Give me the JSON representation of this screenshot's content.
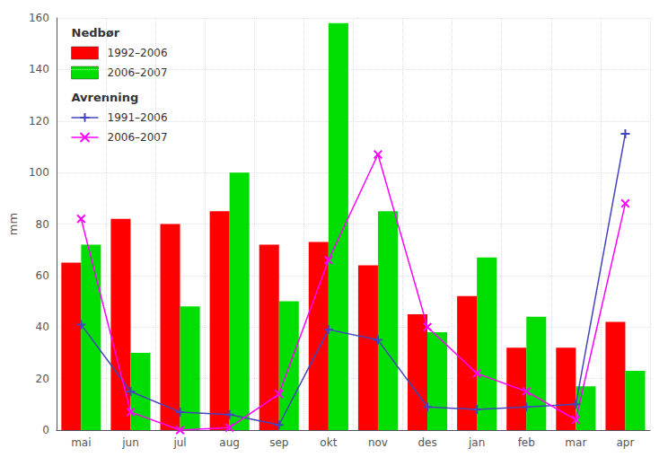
{
  "chart_data": {
    "type": "bar",
    "categories": [
      "mai",
      "jun",
      "jul",
      "aug",
      "sep",
      "okt",
      "nov",
      "des",
      "jan",
      "feb",
      "mar",
      "apr"
    ],
    "series": [
      {
        "name": "1992–2006",
        "legend_group": "Nedbør",
        "type": "bar",
        "color": "#ff0000",
        "values": [
          65,
          82,
          80,
          85,
          72,
          73,
          64,
          45,
          52,
          32,
          32,
          42
        ]
      },
      {
        "name": "2006–2007",
        "legend_group": "Nedbør",
        "type": "bar",
        "color": "#00dd00",
        "values": [
          72,
          30,
          48,
          100,
          50,
          158,
          85,
          38,
          67,
          44,
          17,
          23
        ]
      },
      {
        "name": "1991–2006",
        "legend_group": "Avrenning",
        "type": "line",
        "color": "#4444bb",
        "marker": "plus",
        "values": [
          41,
          15,
          7,
          6,
          2,
          39,
          35,
          9,
          8,
          9,
          10,
          115
        ]
      },
      {
        "name": "2006–2007",
        "legend_group": "Avrenning",
        "type": "line",
        "color": "#ff00ff",
        "marker": "x",
        "values": [
          82,
          7,
          0,
          1,
          14,
          66,
          107,
          40,
          22,
          15,
          4,
          88
        ]
      }
    ],
    "ylabel": "mm",
    "ylim": [
      0,
      160
    ],
    "yticks": [
      0,
      20,
      40,
      60,
      80,
      100,
      120,
      140,
      160
    ],
    "grid": true,
    "legend": "upper left"
  }
}
